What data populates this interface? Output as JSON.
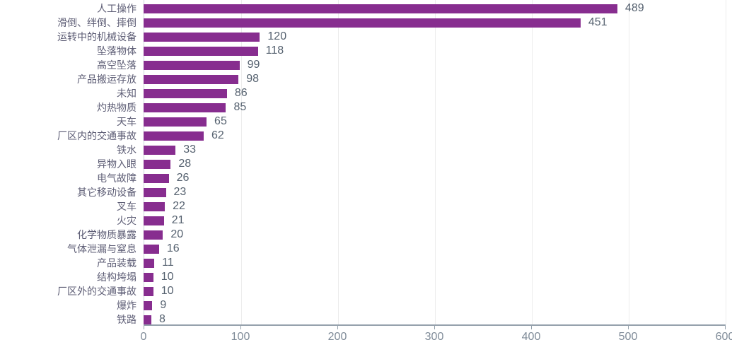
{
  "chart_data": {
    "type": "bar",
    "orientation": "horizontal",
    "title": "",
    "xlabel": "",
    "ylabel": "",
    "categories": [
      "人工操作",
      "滑倒、绊倒、摔倒",
      "运转中的机械设备",
      "坠落物体",
      "高空坠落",
      "产品搬运存放",
      "未知",
      "灼热物质",
      "天车",
      "厂区内的交通事故",
      "铁水",
      "异物入眼",
      "电气故障",
      "其它移动设备",
      "叉车",
      "火灾",
      "化学物质暴露",
      "气体泄漏与窒息",
      "产品装载",
      "结构垮塌",
      "厂区外的交通事故",
      "爆炸",
      "铁路"
    ],
    "values": [
      489,
      451,
      120,
      118,
      99,
      98,
      86,
      85,
      65,
      62,
      33,
      28,
      26,
      23,
      22,
      21,
      20,
      16,
      11,
      10,
      10,
      9,
      8
    ],
    "xlim": [
      0,
      600
    ],
    "x_ticks": [
      0,
      100,
      200,
      300,
      400,
      500,
      600
    ],
    "grid": true,
    "legend": "none",
    "colors": {
      "bar": "#872d8f",
      "category_label": "#5d5d75",
      "value_label": "#55616f",
      "axis_line": "#95a1ac",
      "tick_label": "#7f8b98",
      "gridline": "#ececec",
      "y_axis_line": "#ccd4db"
    }
  }
}
